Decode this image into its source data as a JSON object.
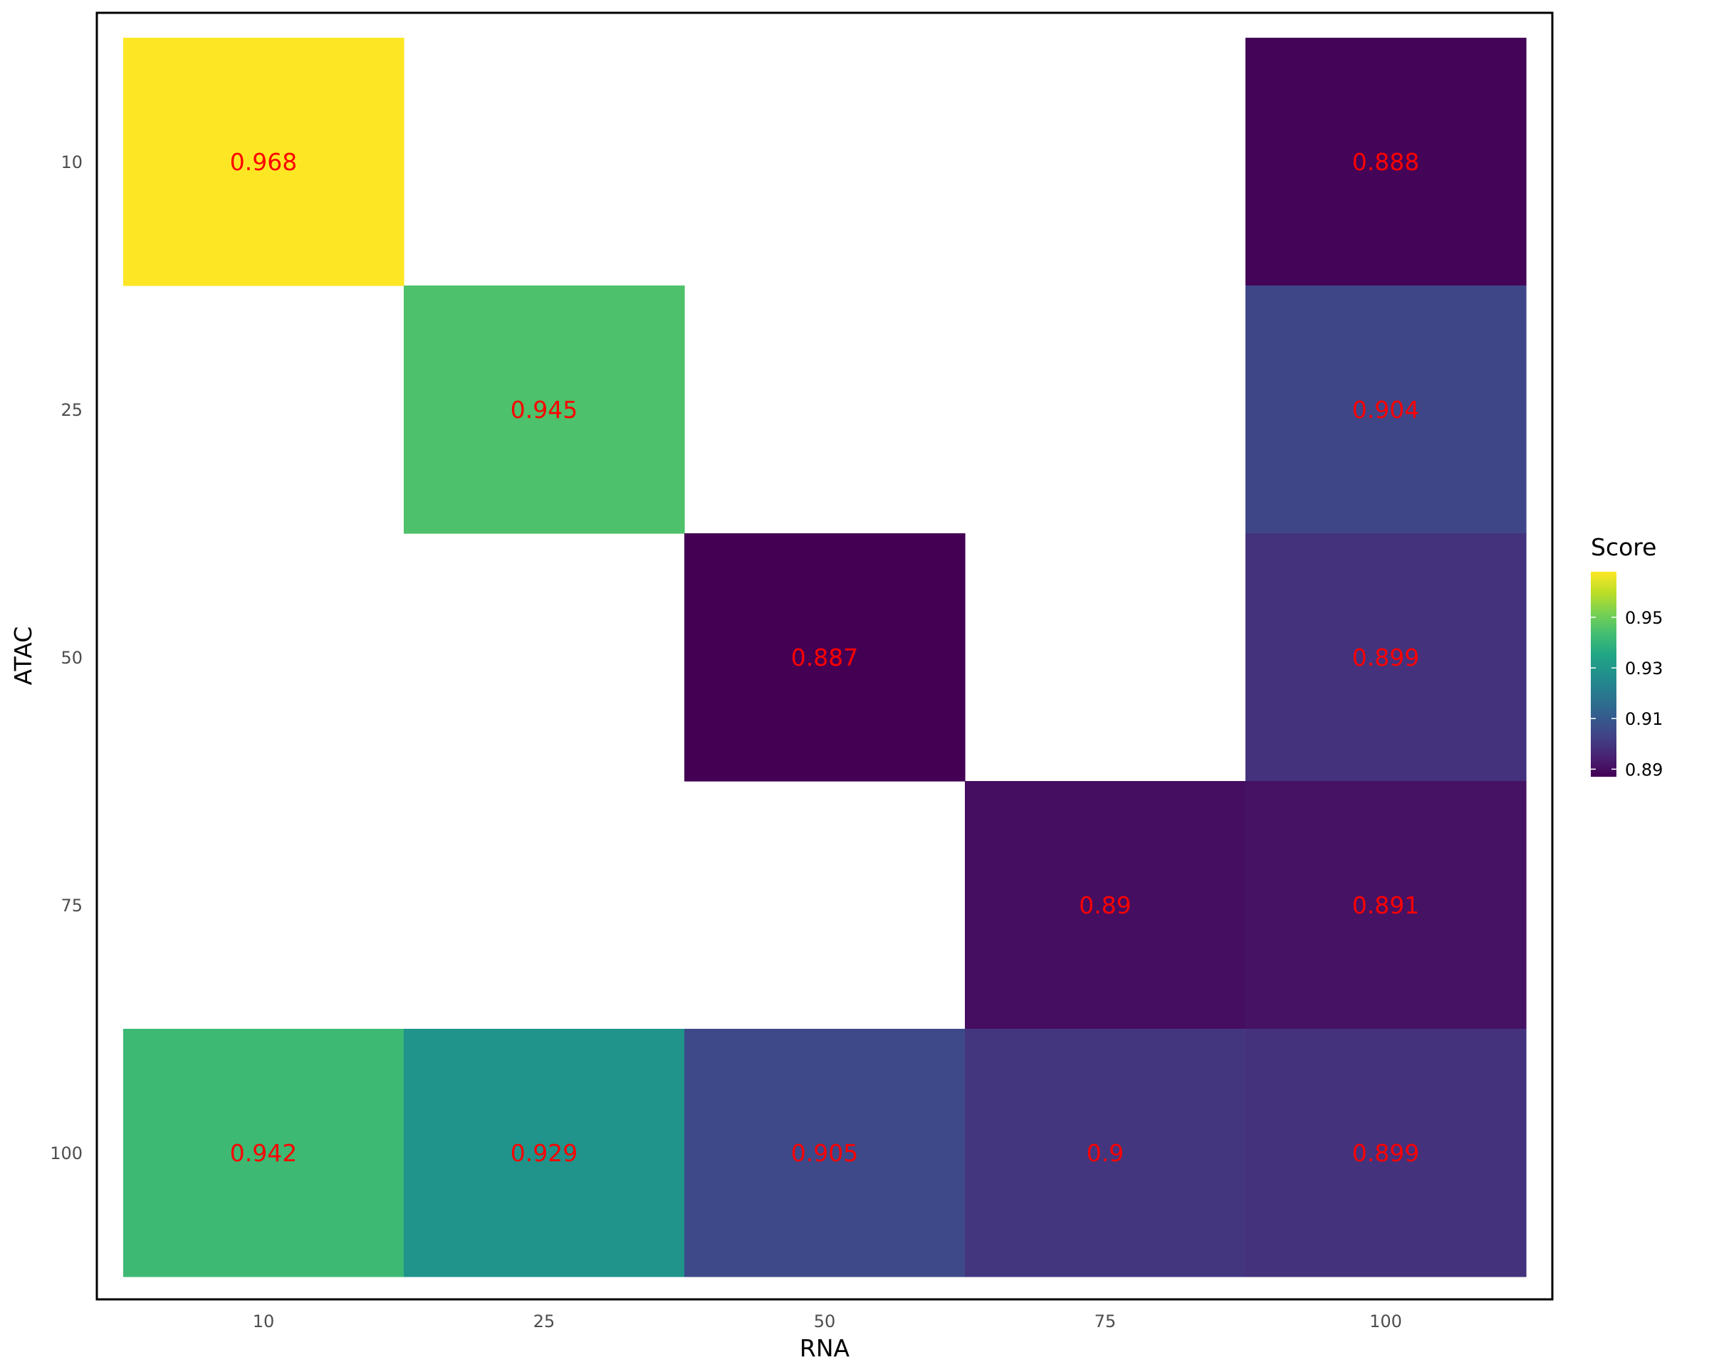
{
  "chart_data": {
    "type": "heatmap",
    "title": "",
    "xlabel": "RNA",
    "ylabel": "ATAC",
    "x_categories": [
      "10",
      "25",
      "50",
      "75",
      "100"
    ],
    "y_categories": [
      "10",
      "25",
      "50",
      "75",
      "100"
    ],
    "cells": [
      {
        "x": "10",
        "y": "10",
        "value": 0.968,
        "label": "0.968"
      },
      {
        "x": "100",
        "y": "10",
        "value": 0.888,
        "label": "0.888"
      },
      {
        "x": "25",
        "y": "25",
        "value": 0.945,
        "label": "0.945"
      },
      {
        "x": "100",
        "y": "25",
        "value": 0.904,
        "label": "0.904"
      },
      {
        "x": "50",
        "y": "50",
        "value": 0.887,
        "label": "0.887"
      },
      {
        "x": "100",
        "y": "50",
        "value": 0.899,
        "label": "0.899"
      },
      {
        "x": "75",
        "y": "75",
        "value": 0.89,
        "label": "0.89"
      },
      {
        "x": "100",
        "y": "75",
        "value": 0.891,
        "label": "0.891"
      },
      {
        "x": "10",
        "y": "100",
        "value": 0.942,
        "label": "0.942"
      },
      {
        "x": "25",
        "y": "100",
        "value": 0.929,
        "label": "0.929"
      },
      {
        "x": "50",
        "y": "100",
        "value": 0.905,
        "label": "0.905"
      },
      {
        "x": "75",
        "y": "100",
        "value": 0.9,
        "label": "0.9"
      },
      {
        "x": "100",
        "y": "100",
        "value": 0.899,
        "label": "0.899"
      }
    ],
    "colorbar": {
      "title": "Score",
      "min": 0.887,
      "max": 0.968,
      "ticks": [
        0.89,
        0.91,
        0.93,
        0.95
      ],
      "tick_labels": [
        "0.89",
        "0.91",
        "0.93",
        "0.95"
      ],
      "colormap": "viridis",
      "placement": "right"
    },
    "label_color": "#ff0000",
    "grid": false,
    "panel_border": true
  }
}
